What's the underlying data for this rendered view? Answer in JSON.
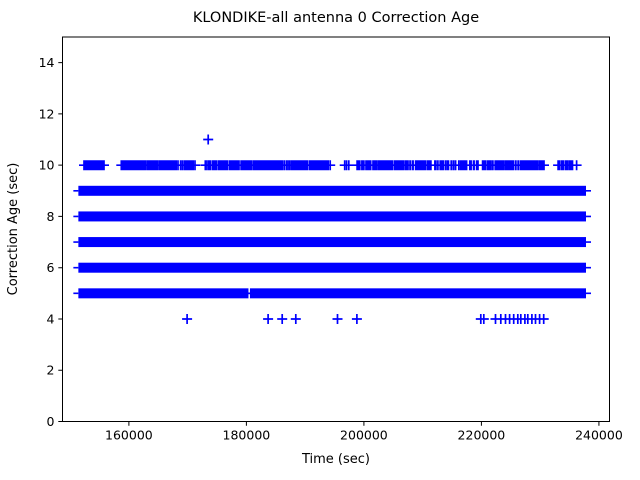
{
  "chart_data": {
    "type": "scatter",
    "title": "KLONDIKE-all antenna 0 Correction Age",
    "xlabel": "Time (sec)",
    "ylabel": "Correction Age (sec)",
    "marker": "plus",
    "marker_color": "#0000ff",
    "background_color": "#ffffff",
    "grid": false,
    "legend": null,
    "xlim": [
      148700,
      241800
    ],
    "ylim": [
      0,
      15
    ],
    "xticks": [
      160000,
      180000,
      200000,
      220000,
      240000
    ],
    "yticks": [
      0,
      2,
      4,
      6,
      8,
      10,
      12,
      14
    ],
    "bands_note": "solid horizontal bands of densely overlapping + markers",
    "bands": [
      {
        "y": 9,
        "segments": [
          [
            151400,
            237800
          ]
        ]
      },
      {
        "y": 8,
        "segments": [
          [
            151400,
            237800
          ]
        ]
      },
      {
        "y": 7,
        "segments": [
          [
            151400,
            237800
          ]
        ]
      },
      {
        "y": 6,
        "segments": [
          [
            151400,
            237800
          ]
        ]
      },
      {
        "y": 5,
        "segments": [
          [
            151400,
            180350
          ],
          [
            180600,
            237800
          ]
        ]
      }
    ],
    "scatter_rows": [
      {
        "y": 10,
        "clusters": [
          {
            "range": [
              152300,
              155800
            ],
            "count": 30
          },
          {
            "range": [
              158700,
              168400
            ],
            "count": 55
          },
          {
            "range": [
              168700,
              171400
            ],
            "count": 12
          },
          {
            "range": [
              172900,
              194300
            ],
            "count": 110
          },
          {
            "range": [
              196500,
              197800
            ],
            "count": 3
          },
          {
            "range": [
              198800,
              211600
            ],
            "count": 55
          },
          {
            "range": [
              211900,
              219600
            ],
            "count": 25
          },
          {
            "range": [
              220000,
              230800
            ],
            "count": 50
          },
          {
            "range": [
              233000,
              235600
            ],
            "count": 12
          }
        ],
        "points": [
          236200
        ]
      },
      {
        "y": 11,
        "clusters": [],
        "points": [
          173500
        ]
      },
      {
        "y": 4,
        "clusters": [],
        "points": [
          169900,
          183700,
          186100,
          188400,
          195500,
          198800,
          219900,
          220400,
          222400,
          223300,
          224100,
          224800,
          225500,
          226200,
          226700,
          227400,
          227900,
          228600,
          229200,
          229900,
          230600
        ]
      }
    ]
  }
}
